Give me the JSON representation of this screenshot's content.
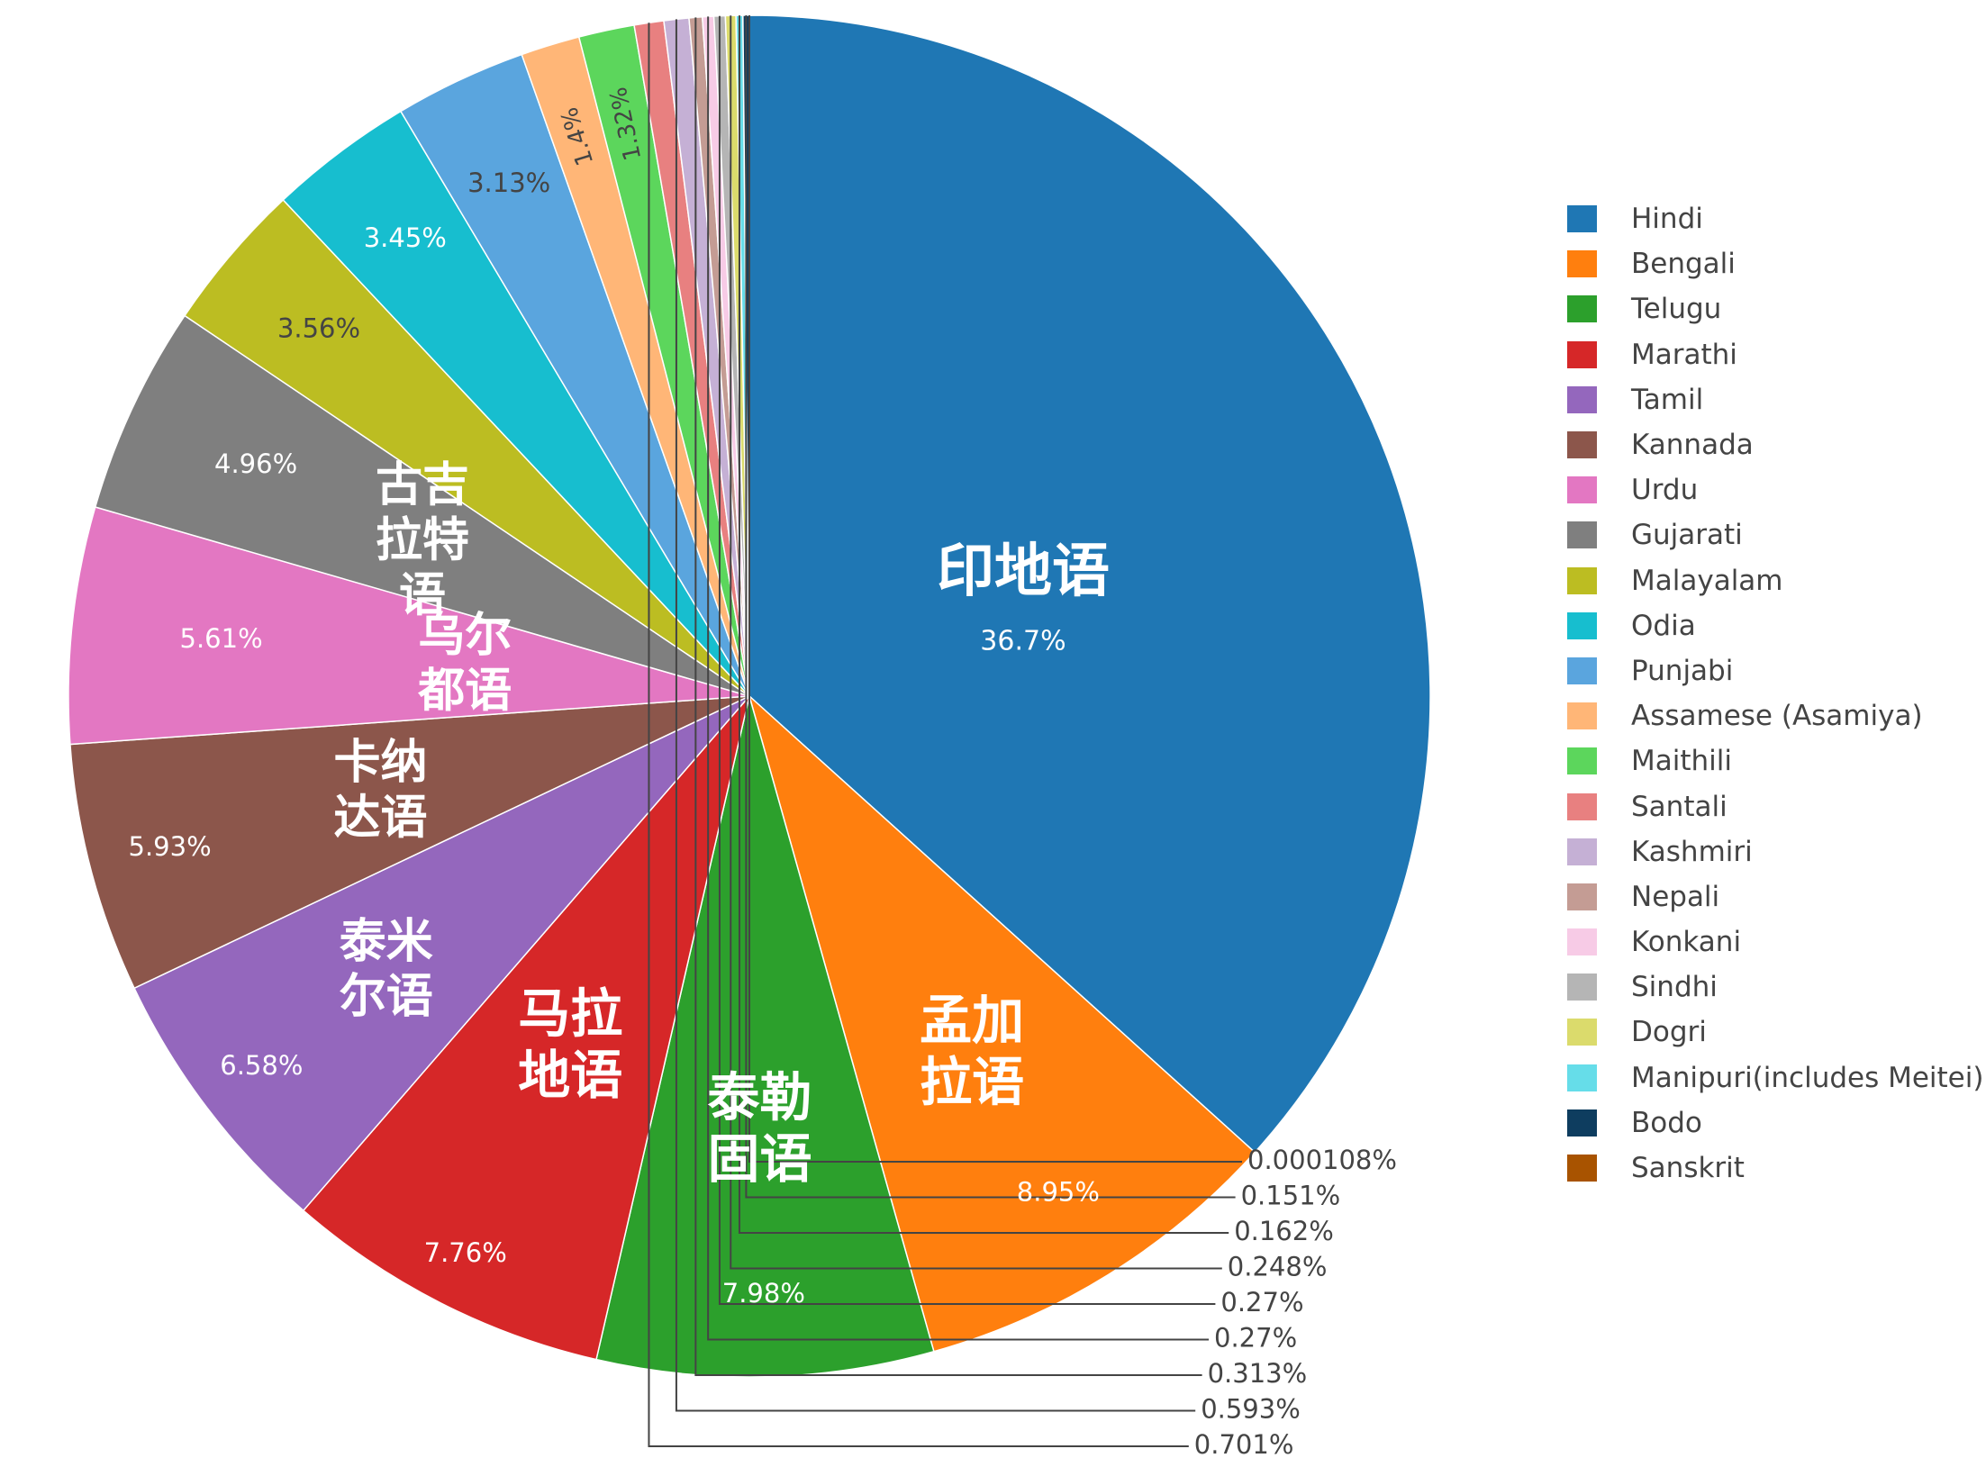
{
  "chart_data": {
    "type": "pie",
    "direction": "clockwise",
    "start": "top",
    "legend_position": "right",
    "slices": [
      {
        "name": "Hindi",
        "value": 36.7,
        "percent_label": "36.7%",
        "inner_label": "印地语",
        "color": "#1f77b4"
      },
      {
        "name": "Bengali",
        "value": 8.95,
        "percent_label": "8.95%",
        "inner_label": "孟加拉语",
        "color": "#ff7f0e"
      },
      {
        "name": "Telugu",
        "value": 7.98,
        "percent_label": "7.98%",
        "inner_label": "泰勒固语",
        "color": "#2ca02c"
      },
      {
        "name": "Marathi",
        "value": 7.76,
        "percent_label": "7.76%",
        "inner_label": "马拉地语",
        "color": "#d62728"
      },
      {
        "name": "Tamil",
        "value": 6.58,
        "percent_label": "6.58%",
        "inner_label": "泰米尔语",
        "color": "#9467bd"
      },
      {
        "name": "Kannada",
        "value": 5.93,
        "percent_label": "5.93%",
        "inner_label": "卡纳达语",
        "color": "#8c564b"
      },
      {
        "name": "Urdu",
        "value": 5.61,
        "percent_label": "5.61%",
        "inner_label": "乌尔都语",
        "color": "#e377c2"
      },
      {
        "name": "Gujarati",
        "value": 4.96,
        "percent_label": "4.96%",
        "inner_label": "古吉拉特语",
        "color": "#7f7f7f"
      },
      {
        "name": "Malayalam",
        "value": 3.56,
        "percent_label": "3.56%",
        "inner_label": "",
        "color": "#bcbd22"
      },
      {
        "name": "Odia",
        "value": 3.45,
        "percent_label": "3.45%",
        "inner_label": "",
        "color": "#17becf"
      },
      {
        "name": "Punjabi",
        "value": 3.13,
        "percent_label": "3.13%",
        "inner_label": "",
        "color": "#5aa5de"
      },
      {
        "name": "Assamese (Asamiya)",
        "value": 1.4,
        "percent_label": "1.4%",
        "inner_label": "",
        "color": "#ffb677"
      },
      {
        "name": "Maithili",
        "value": 1.32,
        "percent_label": "1.32%",
        "inner_label": "",
        "color": "#5cd65c"
      },
      {
        "name": "Santali",
        "value": 0.701,
        "percent_label": "0.701%",
        "inner_label": "",
        "color": "#e88080"
      },
      {
        "name": "Kashmiri",
        "value": 0.593,
        "percent_label": "0.593%",
        "inner_label": "",
        "color": "#c5b0d5"
      },
      {
        "name": "Nepali",
        "value": 0.313,
        "percent_label": "0.313%",
        "inner_label": "",
        "color": "#c49c94"
      },
      {
        "name": "Konkani",
        "value": 0.27,
        "percent_label": "0.27%",
        "inner_label": "",
        "color": "#f7cbe6"
      },
      {
        "name": "Sindhi",
        "value": 0.27,
        "percent_label": "0.27%",
        "inner_label": "",
        "color": "#b5b5b5"
      },
      {
        "name": "Dogri",
        "value": 0.248,
        "percent_label": "0.248%",
        "inner_label": "",
        "color": "#dbdb6c"
      },
      {
        "name": "Manipuri(includes Meitei)",
        "value": 0.162,
        "percent_label": "0.162%",
        "inner_label": "",
        "color": "#66dde9"
      },
      {
        "name": "Bodo",
        "value": 0.151,
        "percent_label": "0.151%",
        "inner_label": "",
        "color": "#0e3d5f"
      },
      {
        "name": "Sanskrit",
        "value": 0.000108,
        "percent_label": "0.000108%",
        "inner_label": "",
        "color": "#a85300"
      }
    ]
  }
}
